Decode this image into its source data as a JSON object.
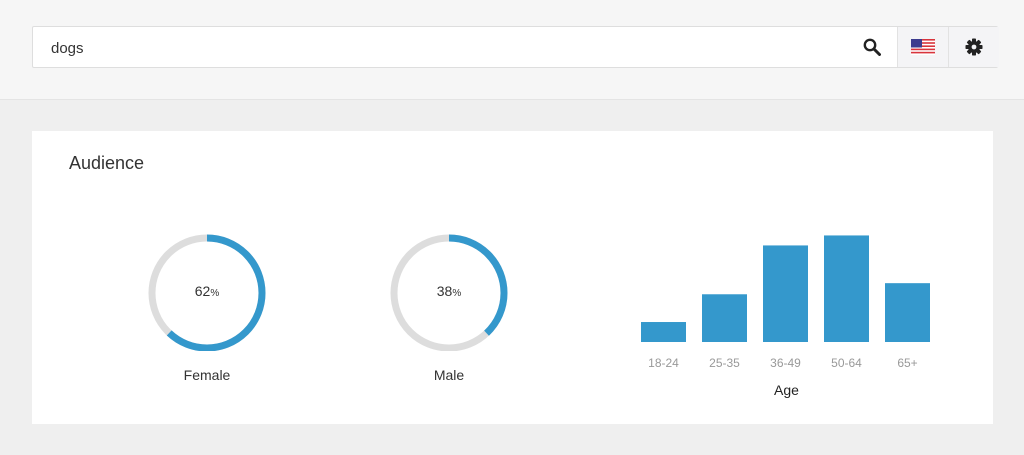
{
  "search": {
    "value": "dogs",
    "search_icon": "search-icon",
    "flag_icon": "us-flag-icon",
    "settings_icon": "gear-icon"
  },
  "audience": {
    "title": "Audience",
    "gender": [
      {
        "label": "Female",
        "value": "62",
        "unit": "%",
        "percent": 62
      },
      {
        "label": "Male",
        "value": "38",
        "unit": "%",
        "percent": 38
      }
    ],
    "accent": "#3498cc",
    "track": "#dddddd"
  },
  "chart_data": {
    "type": "bar",
    "categories": [
      "18-24",
      "25-35",
      "36-49",
      "50-64",
      "65+"
    ],
    "values": [
      18,
      43,
      87,
      96,
      53
    ],
    "xlabel": "Age",
    "ylim": [
      0,
      100
    ],
    "grid": false,
    "color": "#3498cc"
  }
}
